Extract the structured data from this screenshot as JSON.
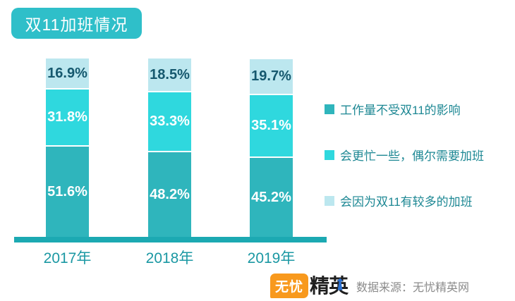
{
  "title": "双11加班情况",
  "chart_data": {
    "type": "bar",
    "stacked": true,
    "orientation": "vertical",
    "categories": [
      "2017年",
      "2018年",
      "2019年"
    ],
    "series": [
      {
        "name": "工作量不受双11的影响",
        "color": "#2fb5bc",
        "label_color": "#ffffff",
        "values": [
          51.6,
          48.2,
          45.2
        ]
      },
      {
        "name": "会更忙一些，偶尔需要加班",
        "color": "#2fd8de",
        "label_color": "#ffffff",
        "values": [
          31.8,
          33.3,
          35.1
        ]
      },
      {
        "name": "会因为双11有较多的加班",
        "color": "#bce7ef",
        "label_color": "#15586e",
        "values": [
          16.9,
          18.5,
          19.7
        ]
      }
    ],
    "value_suffix": "%",
    "ylim": [
      0,
      100
    ],
    "grid": false,
    "legend_position": "right",
    "axis_color": "#1ca9b2",
    "category_label_color": "#1b98a3"
  },
  "footer": {
    "logo_badge": "无忧",
    "logo_text": "精英",
    "source": "数据来源：无忧精英网"
  }
}
